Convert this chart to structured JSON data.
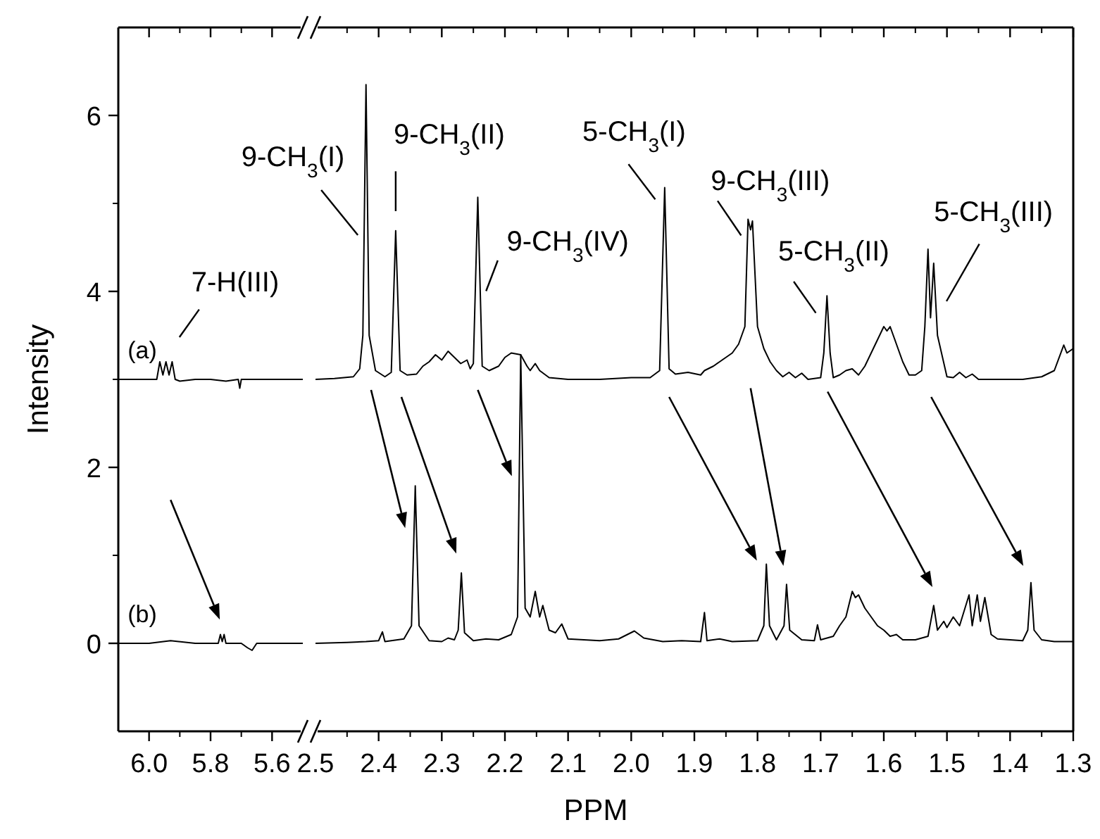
{
  "chart_data": [
    {
      "type": "line",
      "ylabel": "Intensity",
      "xlim": [
        6.1,
        5.5
      ],
      "ylim": [
        -1,
        7
      ],
      "xticks": [
        {
          "value": 6,
          "label": "6.0"
        },
        {
          "value": 5.8,
          "label": "5.8"
        },
        {
          "value": 5.6,
          "label": "5.6"
        }
      ],
      "yticks": [
        0,
        2,
        4,
        6
      ],
      "grid": false,
      "legend": "left",
      "marker": "none",
      "line_style": "solid",
      "series": [
        {
          "name": "(a)",
          "color": "#000000",
          "x": [
            6.1,
            6.0,
            5.975,
            5.965,
            5.955,
            5.945,
            5.935,
            5.925,
            5.915,
            5.9,
            5.85,
            5.8,
            5.75,
            5.71,
            5.705,
            5.7,
            5.65,
            5.6,
            5.5
          ],
          "values": [
            3.0,
            3.0,
            3.0,
            3.2,
            3.05,
            3.2,
            3.05,
            3.2,
            3.0,
            2.98,
            3.0,
            3.0,
            2.98,
            3.0,
            2.9,
            3.0,
            3.0,
            3.0,
            3.0
          ]
        },
        {
          "name": "(b)",
          "color": "#000000",
          "x": [
            6.1,
            6.0,
            5.93,
            5.85,
            5.775,
            5.768,
            5.762,
            5.756,
            5.75,
            5.7,
            5.68,
            5.665,
            5.65,
            5.6,
            5.5
          ],
          "values": [
            0.0,
            0.0,
            0.03,
            0.0,
            0.0,
            0.1,
            0.02,
            0.1,
            0.0,
            0.0,
            -0.05,
            -0.08,
            0.0,
            0.0,
            0.0
          ]
        }
      ],
      "annotations": [
        {
          "text": "7-H(III)",
          "x": 5.925,
          "y": 3.2
        }
      ]
    },
    {
      "type": "line",
      "xlabel": "PPM",
      "xlim": [
        2.5,
        1.3
      ],
      "ylim": [
        -1,
        7
      ],
      "xticks": [
        2.5,
        2.4,
        2.3,
        2.2,
        2.1,
        {
          "value": 2,
          "label": "2.0"
        },
        1.9,
        1.8,
        1.7,
        1.6,
        1.5,
        1.4,
        1.3
      ],
      "yticks": [
        0,
        2,
        4,
        6
      ],
      "tick_labels": "x",
      "grid": false,
      "marker": "none",
      "line_style": "solid",
      "series": [
        {
          "color": "#000000",
          "x": [
            2.5,
            2.47,
            2.44,
            2.43,
            2.425,
            2.42,
            2.415,
            2.405,
            2.39,
            2.38,
            2.373,
            2.366,
            2.355,
            2.34,
            2.33,
            2.32,
            2.31,
            2.3,
            2.29,
            2.28,
            2.27,
            2.26,
            2.255,
            2.25,
            2.243,
            2.236,
            2.225,
            2.21,
            2.2,
            2.19,
            2.175,
            2.165,
            2.16,
            2.152,
            2.145,
            2.13,
            2.1,
            2.05,
            2.0,
            1.97,
            1.955,
            1.947,
            1.94,
            1.93,
            1.91,
            1.89,
            1.884,
            1.87,
            1.86,
            1.85,
            1.84,
            1.83,
            1.82,
            1.815,
            1.811,
            1.808,
            1.8,
            1.79,
            1.78,
            1.77,
            1.76,
            1.75,
            1.74,
            1.73,
            1.72,
            1.7,
            1.695,
            1.69,
            1.685,
            1.68,
            1.67,
            1.66,
            1.65,
            1.64,
            1.63,
            1.62,
            1.61,
            1.6,
            1.595,
            1.59,
            1.58,
            1.57,
            1.56,
            1.55,
            1.54,
            1.535,
            1.53,
            1.526,
            1.521,
            1.515,
            1.5,
            1.49,
            1.48,
            1.47,
            1.46,
            1.45,
            1.42,
            1.38,
            1.35,
            1.33,
            1.315,
            1.31,
            1.3
          ],
          "values": [
            3.0,
            3.01,
            3.03,
            3.12,
            3.5,
            6.35,
            3.5,
            3.1,
            3.03,
            3.08,
            4.69,
            3.1,
            3.05,
            3.06,
            3.15,
            3.2,
            3.28,
            3.22,
            3.32,
            3.25,
            3.18,
            3.22,
            3.12,
            3.18,
            5.07,
            3.15,
            3.1,
            3.15,
            3.25,
            3.3,
            3.28,
            3.15,
            3.1,
            3.18,
            3.1,
            3.02,
            3.0,
            3.0,
            3.02,
            3.02,
            3.1,
            5.18,
            3.12,
            3.06,
            3.08,
            3.05,
            3.1,
            3.15,
            3.2,
            3.25,
            3.3,
            3.4,
            3.6,
            4.82,
            4.7,
            4.8,
            3.6,
            3.35,
            3.2,
            3.1,
            3.03,
            3.08,
            3.02,
            3.07,
            3.0,
            3.02,
            3.3,
            3.95,
            3.3,
            3.02,
            3.05,
            3.1,
            3.12,
            3.05,
            3.15,
            3.3,
            3.45,
            3.6,
            3.55,
            3.6,
            3.4,
            3.2,
            3.05,
            3.05,
            3.1,
            3.6,
            4.48,
            3.7,
            4.32,
            3.5,
            3.03,
            3.02,
            3.08,
            3.02,
            3.06,
            3.0,
            3.0,
            3.0,
            3.03,
            3.1,
            3.39,
            3.3,
            3.35
          ]
        },
        {
          "color": "#000000",
          "x": [
            2.5,
            2.45,
            2.42,
            2.4,
            2.394,
            2.39,
            2.36,
            2.348,
            2.342,
            2.336,
            2.32,
            2.3,
            2.29,
            2.28,
            2.274,
            2.269,
            2.264,
            2.25,
            2.23,
            2.21,
            2.19,
            2.18,
            2.175,
            2.168,
            2.16,
            2.152,
            2.145,
            2.14,
            2.13,
            2.12,
            2.11,
            2.1,
            2.05,
            2.02,
            1.995,
            1.98,
            1.95,
            1.92,
            1.89,
            1.884,
            1.88,
            1.86,
            1.84,
            1.8,
            1.79,
            1.786,
            1.781,
            1.77,
            1.758,
            1.754,
            1.749,
            1.73,
            1.71,
            1.705,
            1.7,
            1.68,
            1.67,
            1.66,
            1.65,
            1.645,
            1.64,
            1.63,
            1.62,
            1.61,
            1.6,
            1.59,
            1.58,
            1.57,
            1.55,
            1.53,
            1.521,
            1.515,
            1.505,
            1.5,
            1.49,
            1.48,
            1.465,
            1.46,
            1.452,
            1.447,
            1.44,
            1.43,
            1.42,
            1.4,
            1.38,
            1.372,
            1.367,
            1.362,
            1.35,
            1.33,
            1.3
          ],
          "values": [
            0.0,
            0.01,
            0.02,
            0.03,
            0.13,
            0.02,
            0.05,
            0.2,
            1.79,
            0.2,
            0.03,
            0.02,
            0.06,
            0.04,
            0.15,
            0.8,
            0.12,
            0.03,
            0.05,
            0.04,
            0.1,
            0.3,
            3.28,
            0.4,
            0.3,
            0.59,
            0.3,
            0.43,
            0.15,
            0.12,
            0.22,
            0.05,
            0.03,
            0.05,
            0.14,
            0.06,
            0.02,
            0.03,
            0.02,
            0.35,
            0.03,
            0.05,
            0.02,
            0.03,
            0.2,
            0.9,
            0.2,
            0.04,
            0.2,
            0.67,
            0.15,
            0.04,
            0.03,
            0.21,
            0.04,
            0.08,
            0.2,
            0.3,
            0.59,
            0.52,
            0.55,
            0.4,
            0.3,
            0.2,
            0.15,
            0.08,
            0.1,
            0.04,
            0.04,
            0.08,
            0.43,
            0.15,
            0.25,
            0.18,
            0.3,
            0.2,
            0.55,
            0.2,
            0.55,
            0.25,
            0.52,
            0.1,
            0.05,
            0.04,
            0.03,
            0.15,
            0.69,
            0.15,
            0.04,
            0.02,
            0.02
          ]
        }
      ],
      "annotations": [
        {
          "text": "9-CH$_{3}$(I)",
          "x": 2.42,
          "y": 6.35
        },
        {
          "text": "9-CH$_{3}$(II)",
          "x": 2.373,
          "y": 4.69
        },
        {
          "text": "9-CH$_{3}$(IV)",
          "x": 2.243,
          "y": 5.07
        },
        {
          "text": "5-CH$_{3}$(I)",
          "x": 1.947,
          "y": 5.18
        },
        {
          "text": "9-CH$_{3}$(III)",
          "x": 1.815,
          "y": 4.82
        },
        {
          "text": "5-CH$_{3}$(II)",
          "x": 1.69,
          "y": 3.95
        },
        {
          "text": "5-CH$_{3}$(III)",
          "x": 1.521,
          "y": 4.32
        }
      ]
    }
  ]
}
